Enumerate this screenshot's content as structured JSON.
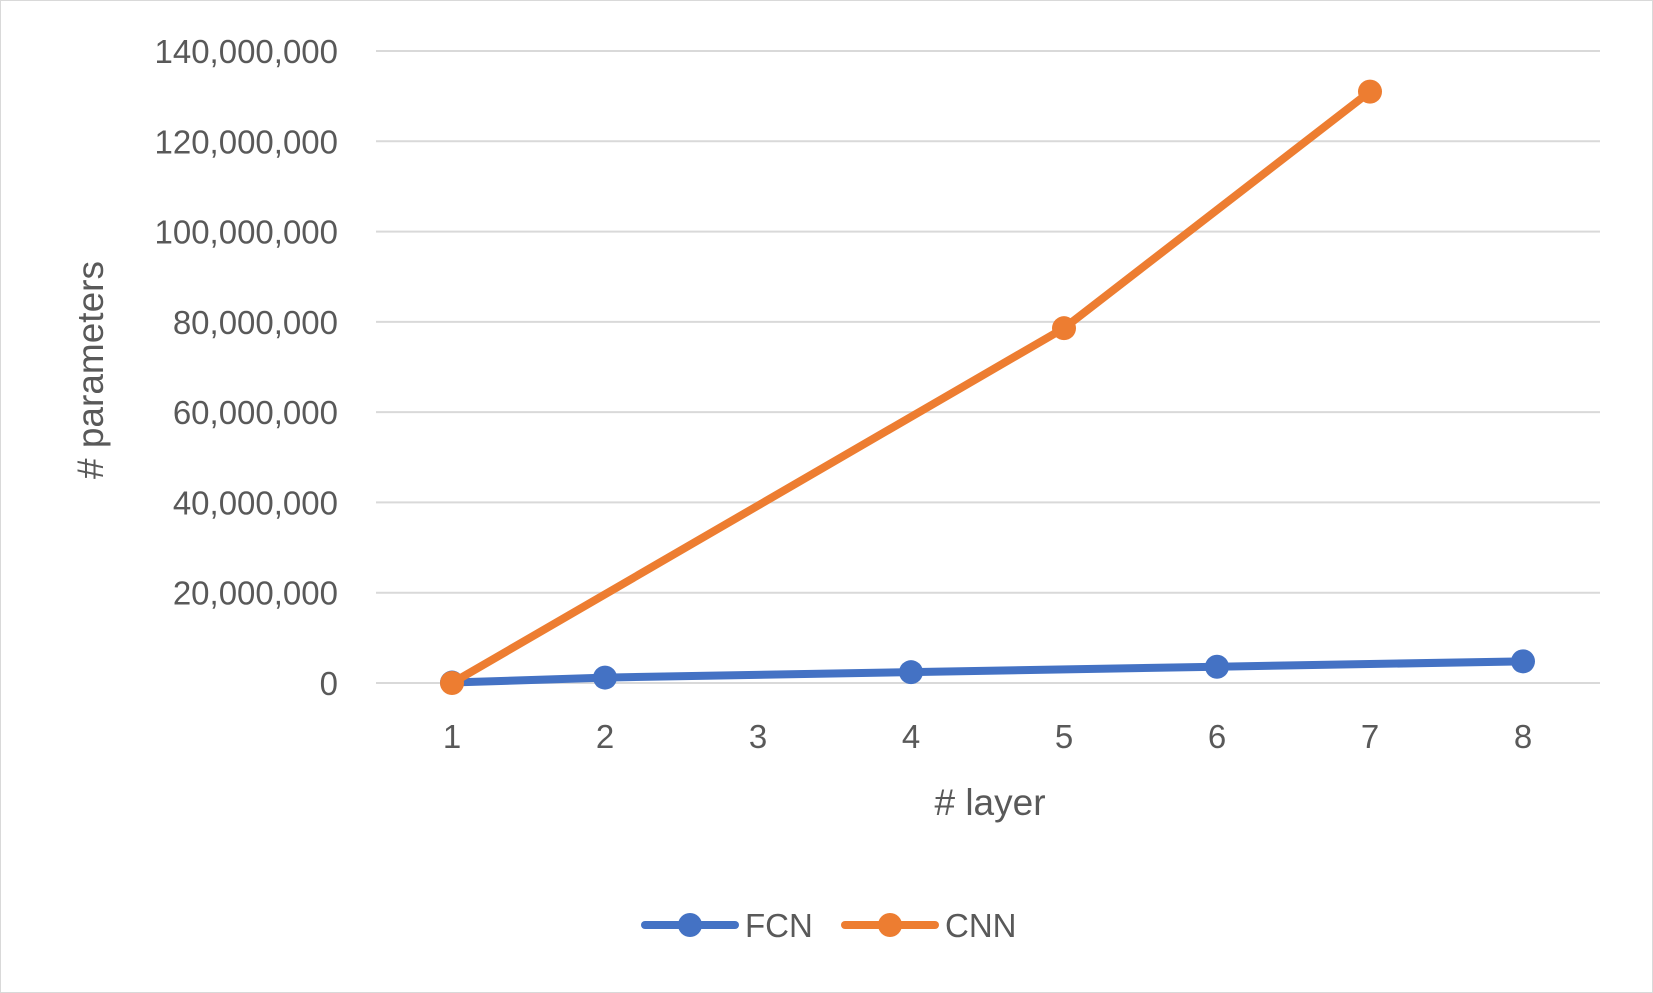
{
  "chart_data": {
    "type": "line",
    "title": "",
    "xlabel": "# layer",
    "ylabel": "# parameters",
    "categories": [
      "1",
      "2",
      "3",
      "4",
      "5",
      "6",
      "7",
      "8"
    ],
    "y_ticks": [
      "0",
      "20,000,000",
      "40,000,000",
      "60,000,000",
      "80,000,000",
      "100,000,000",
      "120,000,000",
      "140,000,000"
    ],
    "y_tick_values": [
      0,
      20000000,
      40000000,
      60000000,
      80000000,
      100000000,
      120000000,
      140000000
    ],
    "ylim": [
      0,
      140000000
    ],
    "grid": true,
    "legend_position": "bottom",
    "series": [
      {
        "name": "FCN",
        "color": "#4472c4",
        "points": [
          {
            "x": "1",
            "y": 100000
          },
          {
            "x": "2",
            "y": 1200000
          },
          {
            "x": "4",
            "y": 2400000
          },
          {
            "x": "6",
            "y": 3600000
          },
          {
            "x": "8",
            "y": 4800000
          }
        ]
      },
      {
        "name": "CNN",
        "color": "#ed7d31",
        "points": [
          {
            "x": "1",
            "y": 0
          },
          {
            "x": "5",
            "y": 78600000
          },
          {
            "x": "7",
            "y": 131000000
          }
        ]
      }
    ]
  }
}
